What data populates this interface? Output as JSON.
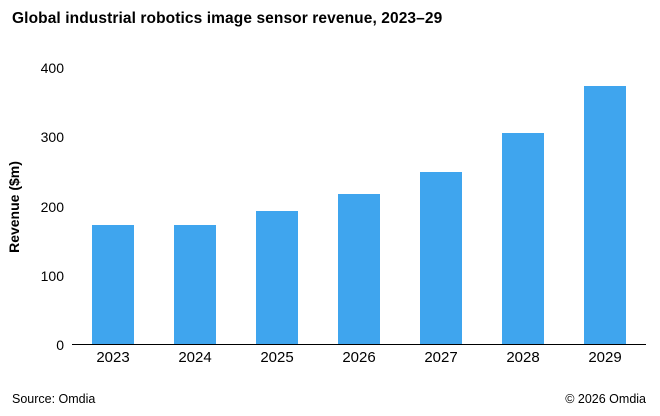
{
  "title": {
    "brand": "Global",
    "rest": " industrial robotics image sensor revenue, 2023–29"
  },
  "footer": {
    "source": "Source: Omdia",
    "copyright": "© 2026 Omdia"
  },
  "chart_data": {
    "type": "bar",
    "title": "Global industrial robotics image sensor revenue, 2023–29",
    "categories": [
      "2023",
      "2024",
      "2025",
      "2026",
      "2027",
      "2028",
      "2029"
    ],
    "values": [
      173,
      172,
      193,
      218,
      250,
      306,
      374
    ],
    "xlabel": "",
    "ylabel": "Revenue ($m)",
    "ylim": [
      0,
      400
    ],
    "yticks": [
      0,
      100,
      200,
      300,
      400
    ],
    "bar_color": "#3FA5EE",
    "grid": false,
    "legend": false
  }
}
